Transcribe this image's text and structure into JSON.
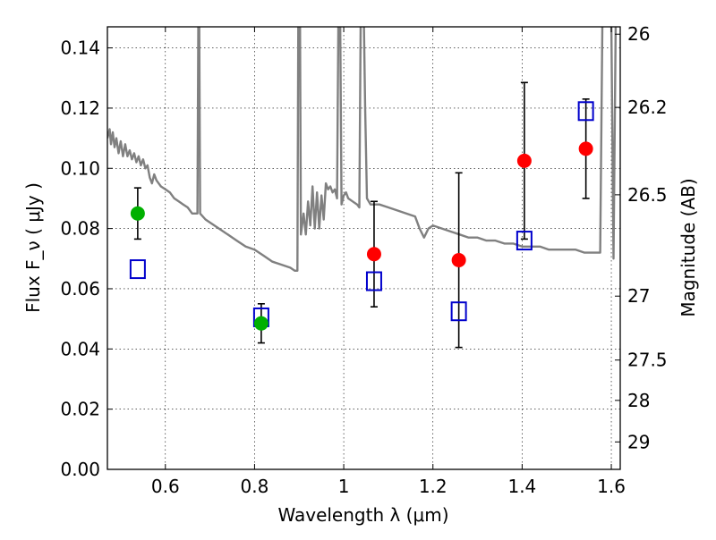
{
  "chart_data": {
    "type": "scatter",
    "title": "",
    "xlabel": "Wavelength  λ (μm)",
    "ylabel": "Flux  F_ν  ( μJy )",
    "ylabel_right": "Magnitude (AB)",
    "xlim": [
      0.47,
      1.62
    ],
    "ylim": [
      0.0,
      0.147
    ],
    "grid": true,
    "x_ticks": [
      {
        "value": 0.6,
        "label": "0.6"
      },
      {
        "value": 0.8,
        "label": "0.8"
      },
      {
        "value": 1.0,
        "label": "1"
      },
      {
        "value": 1.2,
        "label": "1.2"
      },
      {
        "value": 1.4,
        "label": "1.4"
      },
      {
        "value": 1.6,
        "label": "1.6"
      }
    ],
    "y_ticks": [
      {
        "value": 0.0,
        "label": "0.00"
      },
      {
        "value": 0.02,
        "label": "0.02"
      },
      {
        "value": 0.04,
        "label": "0.04"
      },
      {
        "value": 0.06,
        "label": "0.06"
      },
      {
        "value": 0.08,
        "label": "0.08"
      },
      {
        "value": 0.1,
        "label": "0.10"
      },
      {
        "value": 0.12,
        "label": "0.12"
      },
      {
        "value": 0.14,
        "label": "0.14"
      }
    ],
    "y2_ticks": [
      {
        "value": 26,
        "label": "26"
      },
      {
        "value": 26.2,
        "label": "26.2"
      },
      {
        "value": 26.5,
        "label": "26.5"
      },
      {
        "value": 27,
        "label": "27"
      },
      {
        "value": 27.5,
        "label": "27.5"
      },
      {
        "value": 28,
        "label": "28"
      },
      {
        "value": 29,
        "label": "29"
      }
    ],
    "series": [
      {
        "name": "observed (green)",
        "marker": "circle",
        "color": "#00b000",
        "points": [
          {
            "x": 0.538,
            "y": 0.085,
            "err": 0.0085
          },
          {
            "x": 0.815,
            "y": 0.0485,
            "err": 0.0065
          }
        ]
      },
      {
        "name": "observed (red)",
        "marker": "circle",
        "color": "#ff0000",
        "points": [
          {
            "x": 1.068,
            "y": 0.0715,
            "err": 0.0175
          },
          {
            "x": 1.258,
            "y": 0.0695,
            "err": 0.029
          },
          {
            "x": 1.405,
            "y": 0.1025,
            "err": 0.026
          },
          {
            "x": 1.543,
            "y": 0.1065,
            "err": 0.0165
          }
        ]
      },
      {
        "name": "model photometry",
        "marker": "square-open",
        "color": "#0000cc",
        "points": [
          {
            "x": 0.538,
            "y": 0.0665
          },
          {
            "x": 0.815,
            "y": 0.0505
          },
          {
            "x": 1.068,
            "y": 0.0625
          },
          {
            "x": 1.258,
            "y": 0.0525
          },
          {
            "x": 1.405,
            "y": 0.076
          },
          {
            "x": 1.543,
            "y": 0.119
          }
        ]
      },
      {
        "name": "model SED",
        "marker": "line",
        "color": "#808080",
        "points": [
          {
            "x": 0.47,
            "y": 0.11
          },
          {
            "x": 0.475,
            "y": 0.113
          },
          {
            "x": 0.478,
            "y": 0.108
          },
          {
            "x": 0.482,
            "y": 0.112
          },
          {
            "x": 0.486,
            "y": 0.107
          },
          {
            "x": 0.49,
            "y": 0.11
          },
          {
            "x": 0.495,
            "y": 0.105
          },
          {
            "x": 0.5,
            "y": 0.109
          },
          {
            "x": 0.505,
            "y": 0.104
          },
          {
            "x": 0.51,
            "y": 0.108
          },
          {
            "x": 0.515,
            "y": 0.104
          },
          {
            "x": 0.52,
            "y": 0.106
          },
          {
            "x": 0.525,
            "y": 0.103
          },
          {
            "x": 0.53,
            "y": 0.105
          },
          {
            "x": 0.535,
            "y": 0.102
          },
          {
            "x": 0.54,
            "y": 0.104
          },
          {
            "x": 0.545,
            "y": 0.101
          },
          {
            "x": 0.55,
            "y": 0.103
          },
          {
            "x": 0.555,
            "y": 0.1
          },
          {
            "x": 0.56,
            "y": 0.101
          },
          {
            "x": 0.565,
            "y": 0.097
          },
          {
            "x": 0.57,
            "y": 0.095
          },
          {
            "x": 0.575,
            "y": 0.098
          },
          {
            "x": 0.58,
            "y": 0.096
          },
          {
            "x": 0.59,
            "y": 0.094
          },
          {
            "x": 0.6,
            "y": 0.093
          },
          {
            "x": 0.61,
            "y": 0.092
          },
          {
            "x": 0.62,
            "y": 0.09
          },
          {
            "x": 0.63,
            "y": 0.089
          },
          {
            "x": 0.64,
            "y": 0.088
          },
          {
            "x": 0.65,
            "y": 0.087
          },
          {
            "x": 0.66,
            "y": 0.085
          },
          {
            "x": 0.672,
            "y": 0.085
          },
          {
            "x": 0.674,
            "y": 0.15
          },
          {
            "x": 0.676,
            "y": 0.15
          },
          {
            "x": 0.678,
            "y": 0.085
          },
          {
            "x": 0.69,
            "y": 0.083
          },
          {
            "x": 0.7,
            "y": 0.082
          },
          {
            "x": 0.72,
            "y": 0.08
          },
          {
            "x": 0.74,
            "y": 0.078
          },
          {
            "x": 0.76,
            "y": 0.076
          },
          {
            "x": 0.78,
            "y": 0.074
          },
          {
            "x": 0.8,
            "y": 0.073
          },
          {
            "x": 0.82,
            "y": 0.071
          },
          {
            "x": 0.84,
            "y": 0.069
          },
          {
            "x": 0.86,
            "y": 0.068
          },
          {
            "x": 0.88,
            "y": 0.067
          },
          {
            "x": 0.89,
            "y": 0.066
          },
          {
            "x": 0.896,
            "y": 0.066
          },
          {
            "x": 0.898,
            "y": 0.15
          },
          {
            "x": 0.902,
            "y": 0.15
          },
          {
            "x": 0.904,
            "y": 0.078
          },
          {
            "x": 0.91,
            "y": 0.085
          },
          {
            "x": 0.915,
            "y": 0.078
          },
          {
            "x": 0.92,
            "y": 0.089
          },
          {
            "x": 0.925,
            "y": 0.081
          },
          {
            "x": 0.93,
            "y": 0.094
          },
          {
            "x": 0.935,
            "y": 0.08
          },
          {
            "x": 0.94,
            "y": 0.092
          },
          {
            "x": 0.945,
            "y": 0.08
          },
          {
            "x": 0.95,
            "y": 0.091
          },
          {
            "x": 0.955,
            "y": 0.083
          },
          {
            "x": 0.96,
            "y": 0.095
          },
          {
            "x": 0.965,
            "y": 0.093
          },
          {
            "x": 0.97,
            "y": 0.094
          },
          {
            "x": 0.975,
            "y": 0.092
          },
          {
            "x": 0.98,
            "y": 0.093
          },
          {
            "x": 0.985,
            "y": 0.09
          },
          {
            "x": 0.988,
            "y": 0.15
          },
          {
            "x": 0.992,
            "y": 0.15
          },
          {
            "x": 0.995,
            "y": 0.088
          },
          {
            "x": 1.0,
            "y": 0.091
          },
          {
            "x": 1.005,
            "y": 0.092
          },
          {
            "x": 1.01,
            "y": 0.09
          },
          {
            "x": 1.02,
            "y": 0.089
          },
          {
            "x": 1.03,
            "y": 0.088
          },
          {
            "x": 1.035,
            "y": 0.087
          },
          {
            "x": 1.038,
            "y": 0.15
          },
          {
            "x": 1.045,
            "y": 0.15
          },
          {
            "x": 1.048,
            "y": 0.12
          },
          {
            "x": 1.052,
            "y": 0.09
          },
          {
            "x": 1.06,
            "y": 0.088
          },
          {
            "x": 1.08,
            "y": 0.088
          },
          {
            "x": 1.1,
            "y": 0.087
          },
          {
            "x": 1.12,
            "y": 0.086
          },
          {
            "x": 1.14,
            "y": 0.085
          },
          {
            "x": 1.16,
            "y": 0.084
          },
          {
            "x": 1.17,
            "y": 0.08
          },
          {
            "x": 1.18,
            "y": 0.077
          },
          {
            "x": 1.19,
            "y": 0.08
          },
          {
            "x": 1.2,
            "y": 0.081
          },
          {
            "x": 1.22,
            "y": 0.08
          },
          {
            "x": 1.24,
            "y": 0.079
          },
          {
            "x": 1.26,
            "y": 0.078
          },
          {
            "x": 1.28,
            "y": 0.077
          },
          {
            "x": 1.3,
            "y": 0.077
          },
          {
            "x": 1.32,
            "y": 0.076
          },
          {
            "x": 1.34,
            "y": 0.076
          },
          {
            "x": 1.36,
            "y": 0.075
          },
          {
            "x": 1.38,
            "y": 0.075
          },
          {
            "x": 1.4,
            "y": 0.074
          },
          {
            "x": 1.42,
            "y": 0.074
          },
          {
            "x": 1.44,
            "y": 0.074
          },
          {
            "x": 1.46,
            "y": 0.073
          },
          {
            "x": 1.48,
            "y": 0.073
          },
          {
            "x": 1.5,
            "y": 0.073
          },
          {
            "x": 1.52,
            "y": 0.073
          },
          {
            "x": 1.54,
            "y": 0.072
          },
          {
            "x": 1.56,
            "y": 0.072
          },
          {
            "x": 1.575,
            "y": 0.072
          },
          {
            "x": 1.58,
            "y": 0.15
          },
          {
            "x": 1.6,
            "y": 0.15
          },
          {
            "x": 1.605,
            "y": 0.07
          },
          {
            "x": 1.61,
            "y": 0.15
          },
          {
            "x": 1.62,
            "y": 0.15
          }
        ]
      }
    ]
  }
}
